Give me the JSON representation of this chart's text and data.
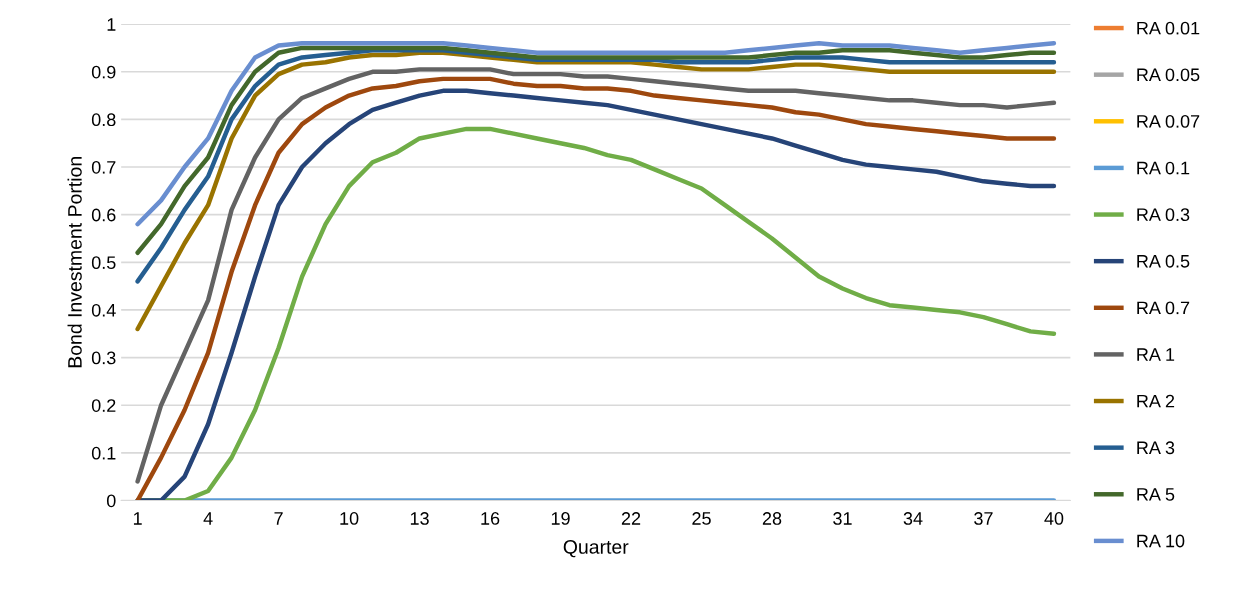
{
  "chart_data": {
    "type": "line",
    "xlabel": "Quarter",
    "ylabel": "Bond Investment Portion",
    "categories": [
      "1",
      null,
      null,
      "4",
      null,
      null,
      "7",
      null,
      null,
      "10",
      null,
      null,
      "13",
      null,
      null,
      "16",
      null,
      null,
      "19",
      null,
      null,
      "22",
      null,
      null,
      "25",
      null,
      null,
      "28",
      null,
      null,
      "31",
      null,
      null,
      "34",
      null,
      null,
      "37",
      null,
      null,
      "40"
    ],
    "ylim": [
      0,
      1
    ],
    "yticks": [
      0,
      0.1,
      0.2,
      0.3,
      0.4,
      0.5,
      0.6,
      0.7,
      0.8,
      0.9,
      1
    ],
    "grid": "y",
    "legend": "right",
    "marker": "none",
    "line_style": "solid",
    "series": [
      {
        "name": "RA 0.01",
        "color": "#ed7d31",
        "values": [
          null,
          null,
          null,
          null,
          null,
          null,
          null,
          null,
          null,
          null,
          null,
          null,
          null,
          null,
          null,
          null,
          null,
          null,
          null,
          null,
          null,
          null,
          null,
          null,
          null,
          null,
          null,
          null,
          null,
          null,
          null,
          null,
          null,
          null,
          null,
          null,
          null,
          null,
          null,
          null
        ]
      },
      {
        "name": "RA 0.05",
        "color": "#a5a5a5",
        "values": [
          null,
          null,
          null,
          null,
          null,
          null,
          null,
          null,
          null,
          null,
          null,
          null,
          null,
          null,
          null,
          null,
          null,
          null,
          null,
          null,
          null,
          null,
          null,
          null,
          null,
          null,
          null,
          null,
          null,
          null,
          null,
          null,
          null,
          null,
          null,
          null,
          null,
          null,
          null,
          null
        ]
      },
      {
        "name": "RA 0.07",
        "color": "#ffc000",
        "values": [
          null,
          null,
          null,
          null,
          null,
          null,
          null,
          null,
          null,
          null,
          null,
          null,
          null,
          null,
          null,
          null,
          null,
          null,
          null,
          null,
          null,
          null,
          null,
          null,
          null,
          null,
          null,
          null,
          null,
          null,
          null,
          null,
          null,
          null,
          null,
          null,
          null,
          null,
          null,
          null
        ]
      },
      {
        "name": "RA 0.1",
        "color": "#5b9bd5",
        "values": [
          0,
          0,
          0,
          0,
          0,
          0,
          0,
          0,
          0,
          0,
          0,
          0,
          0,
          0,
          0,
          0,
          0,
          0,
          0,
          0,
          0,
          0,
          0,
          0,
          0,
          0,
          0,
          0,
          0,
          0,
          0,
          0,
          0,
          0,
          0,
          0,
          0,
          0,
          0,
          0
        ]
      },
      {
        "name": "RA 0.3",
        "color": "#70ad47",
        "values": [
          0,
          0,
          0,
          0.02,
          0.09,
          0.19,
          0.32,
          0.47,
          0.58,
          0.66,
          0.71,
          0.73,
          0.76,
          0.77,
          0.78,
          0.78,
          0.77,
          0.76,
          0.75,
          0.74,
          0.725,
          0.715,
          0.695,
          0.675,
          0.655,
          0.62,
          0.585,
          0.55,
          0.51,
          0.47,
          0.445,
          0.425,
          0.41,
          0.405,
          0.4,
          0.395,
          0.385,
          0.37,
          0.355,
          0.35
        ]
      },
      {
        "name": "RA 0.5",
        "color": "#264478",
        "values": [
          0,
          0,
          0.05,
          0.16,
          0.31,
          0.47,
          0.62,
          0.7,
          0.75,
          0.79,
          0.82,
          0.835,
          0.85,
          0.86,
          0.86,
          0.855,
          0.85,
          0.845,
          0.84,
          0.835,
          0.83,
          0.82,
          0.81,
          0.8,
          0.79,
          0.78,
          0.77,
          0.76,
          0.745,
          0.73,
          0.715,
          0.705,
          0.7,
          0.695,
          0.69,
          0.68,
          0.67,
          0.665,
          0.66,
          0.66
        ]
      },
      {
        "name": "RA 0.7",
        "color": "#9e480e",
        "values": [
          0,
          0.09,
          0.19,
          0.31,
          0.48,
          0.62,
          0.73,
          0.79,
          0.825,
          0.85,
          0.865,
          0.87,
          0.88,
          0.885,
          0.885,
          0.885,
          0.875,
          0.87,
          0.87,
          0.865,
          0.865,
          0.86,
          0.85,
          0.845,
          0.84,
          0.835,
          0.83,
          0.825,
          0.815,
          0.81,
          0.8,
          0.79,
          0.785,
          0.78,
          0.775,
          0.77,
          0.765,
          0.76,
          0.76,
          0.76
        ]
      },
      {
        "name": "RA 1",
        "color": "#636363",
        "values": [
          0.04,
          0.2,
          0.31,
          0.42,
          0.61,
          0.72,
          0.8,
          0.845,
          0.865,
          0.885,
          0.9,
          0.9,
          0.905,
          0.905,
          0.905,
          0.905,
          0.895,
          0.895,
          0.895,
          0.89,
          0.89,
          0.885,
          0.88,
          0.875,
          0.87,
          0.865,
          0.86,
          0.86,
          0.86,
          0.855,
          0.85,
          0.845,
          0.84,
          0.84,
          0.835,
          0.83,
          0.83,
          0.825,
          0.83,
          0.835
        ]
      },
      {
        "name": "RA 2",
        "color": "#997300",
        "values": [
          0.36,
          0.45,
          0.54,
          0.62,
          0.76,
          0.85,
          0.895,
          0.915,
          0.92,
          0.93,
          0.935,
          0.935,
          0.94,
          0.94,
          0.935,
          0.93,
          0.925,
          0.92,
          0.92,
          0.92,
          0.92,
          0.92,
          0.915,
          0.91,
          0.905,
          0.905,
          0.905,
          0.91,
          0.915,
          0.915,
          0.91,
          0.905,
          0.9,
          0.9,
          0.9,
          0.9,
          0.9,
          0.9,
          0.9,
          0.9
        ]
      },
      {
        "name": "RA 3",
        "color": "#255e91",
        "values": [
          0.46,
          0.53,
          0.61,
          0.68,
          0.8,
          0.87,
          0.915,
          0.93,
          0.935,
          0.94,
          0.945,
          0.945,
          0.945,
          0.945,
          0.94,
          0.935,
          0.93,
          0.925,
          0.925,
          0.925,
          0.925,
          0.925,
          0.925,
          0.92,
          0.92,
          0.92,
          0.92,
          0.925,
          0.93,
          0.93,
          0.93,
          0.925,
          0.92,
          0.92,
          0.92,
          0.92,
          0.92,
          0.92,
          0.92,
          0.92
        ]
      },
      {
        "name": "RA 5",
        "color": "#43682b",
        "values": [
          0.52,
          0.58,
          0.66,
          0.72,
          0.83,
          0.9,
          0.94,
          0.95,
          0.95,
          0.95,
          0.95,
          0.95,
          0.95,
          0.95,
          0.945,
          0.94,
          0.935,
          0.93,
          0.93,
          0.93,
          0.93,
          0.93,
          0.93,
          0.93,
          0.93,
          0.93,
          0.93,
          0.935,
          0.94,
          0.94,
          0.945,
          0.945,
          0.945,
          0.94,
          0.935,
          0.93,
          0.93,
          0.935,
          0.94,
          0.94
        ]
      },
      {
        "name": "RA 10",
        "color": "#698ed0",
        "values": [
          0.58,
          0.63,
          0.7,
          0.76,
          0.86,
          0.93,
          0.955,
          0.96,
          0.96,
          0.96,
          0.96,
          0.96,
          0.96,
          0.96,
          0.955,
          0.95,
          0.945,
          0.94,
          0.94,
          0.94,
          0.94,
          0.94,
          0.94,
          0.94,
          0.94,
          0.94,
          0.945,
          0.95,
          0.955,
          0.96,
          0.955,
          0.955,
          0.955,
          0.95,
          0.945,
          0.94,
          0.945,
          0.95,
          0.955,
          0.96
        ]
      }
    ]
  }
}
